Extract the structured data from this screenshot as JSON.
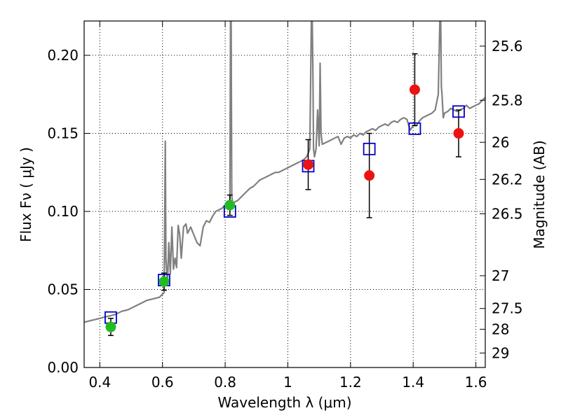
{
  "chart_data": {
    "type": "scatter",
    "xlabel": "Wavelength  λ (μm)",
    "ylabel": "Flux  Fν  ( μJy )",
    "ylabel_right": "Magnitude (AB)",
    "xlim": [
      0.35,
      1.63
    ],
    "ylim": [
      0.0,
      0.222
    ],
    "grid": true,
    "x_ticks": [
      0.4,
      0.6,
      0.8,
      1.0,
      1.2,
      1.4,
      1.6
    ],
    "x_tick_labels": [
      "0.4",
      "0.6",
      "0.8",
      "1",
      "1.2",
      "1.4",
      "1.6"
    ],
    "y_ticks": [
      0.0,
      0.05,
      0.1,
      0.15,
      0.2
    ],
    "y_tick_labels": [
      "0.00",
      "0.05",
      "0.10",
      "0.15",
      "0.20"
    ],
    "right_ticks": [
      {
        "flux": 0.2059,
        "label": "25.6"
      },
      {
        "flux": 0.1712,
        "label": "25.8"
      },
      {
        "flux": 0.1443,
        "label": "26"
      },
      {
        "flux": 0.1205,
        "label": "26.2"
      },
      {
        "flux": 0.0985,
        "label": "26.5"
      },
      {
        "flux": 0.0588,
        "label": "27"
      },
      {
        "flux": 0.0378,
        "label": "27.5"
      },
      {
        "flux": 0.0245,
        "label": "28"
      },
      {
        "flux": 0.0093,
        "label": "29"
      }
    ],
    "colors": {
      "model_line": "#808080",
      "model_points": "#0000cc",
      "ground_points": "#22bb22",
      "space_points": "#ee1111",
      "errorbar": "#000000"
    },
    "model_spectrum": {
      "x": [
        0.35,
        0.37,
        0.39,
        0.41,
        0.43,
        0.45,
        0.47,
        0.49,
        0.51,
        0.53,
        0.55,
        0.57,
        0.59,
        0.605,
        0.607,
        0.609,
        0.611,
        0.613,
        0.616,
        0.62,
        0.625,
        0.63,
        0.635,
        0.64,
        0.645,
        0.65,
        0.655,
        0.66,
        0.667,
        0.675,
        0.68,
        0.69,
        0.7,
        0.71,
        0.72,
        0.73,
        0.74,
        0.75,
        0.76,
        0.77,
        0.78,
        0.79,
        0.8,
        0.81,
        0.815,
        0.817,
        0.819,
        0.821,
        0.824,
        0.83,
        0.84,
        0.85,
        0.86,
        0.87,
        0.88,
        0.89,
        0.9,
        0.91,
        0.92,
        0.93,
        0.94,
        0.95,
        0.96,
        0.97,
        0.98,
        0.99,
        1.0,
        1.01,
        1.02,
        1.03,
        1.04,
        1.05,
        1.06,
        1.07,
        1.075,
        1.078,
        1.08,
        1.082,
        1.085,
        1.09,
        1.095,
        1.1,
        1.103,
        1.106,
        1.11,
        1.12,
        1.13,
        1.14,
        1.15,
        1.16,
        1.17,
        1.18,
        1.19,
        1.2,
        1.21,
        1.22,
        1.23,
        1.24,
        1.25,
        1.26,
        1.27,
        1.28,
        1.29,
        1.3,
        1.31,
        1.32,
        1.33,
        1.34,
        1.35,
        1.36,
        1.37,
        1.38,
        1.39,
        1.4,
        1.41,
        1.42,
        1.43,
        1.44,
        1.45,
        1.46,
        1.47,
        1.48,
        1.485,
        1.488,
        1.49,
        1.492,
        1.496,
        1.5,
        1.51,
        1.52,
        1.53,
        1.54,
        1.55,
        1.56,
        1.57,
        1.58,
        1.59,
        1.6,
        1.61,
        1.62,
        1.63
      ],
      "y": [
        0.029,
        0.03,
        0.031,
        0.032,
        0.033,
        0.034,
        0.036,
        0.037,
        0.039,
        0.041,
        0.043,
        0.044,
        0.045,
        0.048,
        0.09,
        0.145,
        0.07,
        0.063,
        0.054,
        0.08,
        0.06,
        0.09,
        0.063,
        0.07,
        0.064,
        0.091,
        0.085,
        0.07,
        0.09,
        0.092,
        0.086,
        0.09,
        0.085,
        0.08,
        0.078,
        0.09,
        0.094,
        0.093,
        0.097,
        0.1,
        0.101,
        0.102,
        0.104,
        0.105,
        0.106,
        0.222,
        0.222,
        0.11,
        0.105,
        0.106,
        0.107,
        0.109,
        0.111,
        0.113,
        0.115,
        0.116,
        0.118,
        0.12,
        0.121,
        0.122,
        0.123,
        0.124,
        0.125,
        0.125,
        0.126,
        0.127,
        0.128,
        0.129,
        0.13,
        0.131,
        0.132,
        0.133,
        0.135,
        0.14,
        0.222,
        0.222,
        0.19,
        0.14,
        0.135,
        0.14,
        0.165,
        0.142,
        0.195,
        0.15,
        0.143,
        0.144,
        0.145,
        0.146,
        0.147,
        0.148,
        0.143,
        0.147,
        0.148,
        0.147,
        0.149,
        0.148,
        0.15,
        0.149,
        0.151,
        0.152,
        0.153,
        0.152,
        0.154,
        0.155,
        0.156,
        0.155,
        0.157,
        0.158,
        0.157,
        0.159,
        0.16,
        0.159,
        0.152,
        0.155,
        0.155,
        0.158,
        0.16,
        0.161,
        0.162,
        0.163,
        0.165,
        0.175,
        0.222,
        0.222,
        0.18,
        0.175,
        0.16,
        0.163,
        0.164,
        0.166,
        0.165,
        0.164,
        0.165,
        0.166,
        0.168,
        0.166,
        0.167,
        0.168,
        0.169,
        0.171,
        0.173
      ]
    },
    "series": [
      {
        "marker": "square",
        "x": [
          0.435,
          0.605,
          0.815,
          1.065,
          1.26,
          1.405,
          1.545
        ],
        "y": [
          0.032,
          0.056,
          0.1,
          0.129,
          0.14,
          0.153,
          0.164
        ]
      },
      {
        "marker": "circle",
        "x": [
          0.435,
          0.605,
          0.815
        ],
        "y": [
          0.026,
          0.055,
          0.104
        ],
        "yerr": [
          0.0055,
          0.0055,
          0.0065
        ]
      },
      {
        "marker": "circle",
        "x": [
          1.065,
          1.26,
          1.405,
          1.545
        ],
        "y": [
          0.13,
          0.123,
          0.178,
          0.15
        ],
        "yerr": [
          0.016,
          0.027,
          0.023,
          0.015
        ]
      }
    ]
  }
}
